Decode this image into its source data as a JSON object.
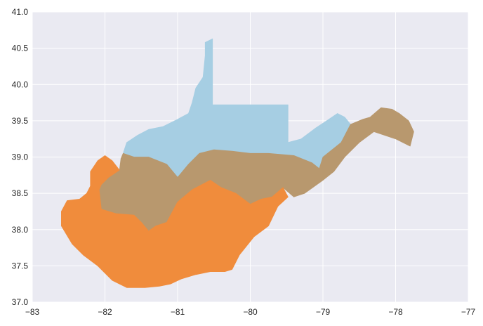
{
  "chart_data": {
    "type": "map",
    "title": "",
    "xlabel": "",
    "ylabel": "",
    "xlim": [
      -83,
      -77
    ],
    "ylim": [
      37.0,
      41.0
    ],
    "grid": true,
    "x_ticks": [
      -83,
      -82,
      -81,
      -80,
      -79,
      -78,
      -77
    ],
    "x_tick_labels": [
      "−83",
      "−82",
      "−81",
      "−80",
      "−79",
      "−78",
      "−77"
    ],
    "y_ticks": [
      37.0,
      37.5,
      38.0,
      38.5,
      39.0,
      39.5,
      40.0,
      40.5,
      41.0
    ],
    "y_tick_labels": [
      "37.0",
      "37.5",
      "38.0",
      "38.5",
      "39.0",
      "39.5",
      "40.0",
      "40.5",
      "41.0"
    ],
    "colors": {
      "plot_background": "#eaeaf2",
      "grid": "#ffffff",
      "north": "#a6cee3",
      "central": "#b8986e",
      "south": "#f08c3c"
    },
    "regions": [
      {
        "id": "north",
        "color": "#a6cee3",
        "outline": [
          [
            -80.52,
            40.63
          ],
          [
            -80.52,
            39.72
          ],
          [
            -79.48,
            39.72
          ],
          [
            -79.48,
            39.2
          ],
          [
            -79.3,
            39.25
          ],
          [
            -79.1,
            39.4
          ],
          [
            -78.95,
            39.5
          ],
          [
            -78.8,
            39.6
          ],
          [
            -78.7,
            39.55
          ],
          [
            -78.62,
            39.45
          ],
          [
            -78.75,
            39.2
          ],
          [
            -79.0,
            39.0
          ],
          [
            -79.05,
            38.84
          ],
          [
            -79.15,
            38.92
          ],
          [
            -79.4,
            39.02
          ],
          [
            -79.75,
            39.05
          ],
          [
            -80.0,
            39.05
          ],
          [
            -80.25,
            39.08
          ],
          [
            -80.5,
            39.1
          ],
          [
            -80.7,
            39.05
          ],
          [
            -80.85,
            38.9
          ],
          [
            -81.0,
            38.72
          ],
          [
            -81.15,
            38.9
          ],
          [
            -81.4,
            39.0
          ],
          [
            -81.6,
            39.0
          ],
          [
            -81.75,
            39.05
          ],
          [
            -81.7,
            39.2
          ],
          [
            -81.55,
            39.3
          ],
          [
            -81.4,
            39.38
          ],
          [
            -81.2,
            39.42
          ],
          [
            -81.0,
            39.52
          ],
          [
            -80.85,
            39.6
          ],
          [
            -80.8,
            39.75
          ],
          [
            -80.75,
            39.95
          ],
          [
            -80.65,
            40.1
          ],
          [
            -80.62,
            40.4
          ],
          [
            -80.62,
            40.58
          ]
        ]
      },
      {
        "id": "central",
        "color": "#b8986e",
        "outline": [
          [
            -81.75,
            39.05
          ],
          [
            -81.6,
            39.0
          ],
          [
            -81.4,
            39.0
          ],
          [
            -81.15,
            38.9
          ],
          [
            -81.0,
            38.72
          ],
          [
            -80.85,
            38.9
          ],
          [
            -80.7,
            39.05
          ],
          [
            -80.5,
            39.1
          ],
          [
            -80.25,
            39.08
          ],
          [
            -80.0,
            39.05
          ],
          [
            -79.75,
            39.05
          ],
          [
            -79.4,
            39.02
          ],
          [
            -79.15,
            38.92
          ],
          [
            -79.05,
            38.84
          ],
          [
            -79.0,
            39.0
          ],
          [
            -78.75,
            39.2
          ],
          [
            -78.62,
            39.45
          ],
          [
            -78.45,
            39.52
          ],
          [
            -78.35,
            39.55
          ],
          [
            -78.2,
            39.68
          ],
          [
            -78.05,
            39.66
          ],
          [
            -77.95,
            39.6
          ],
          [
            -77.82,
            39.5
          ],
          [
            -77.75,
            39.35
          ],
          [
            -77.8,
            39.15
          ],
          [
            -78.0,
            39.25
          ],
          [
            -78.3,
            39.35
          ],
          [
            -78.5,
            39.2
          ],
          [
            -78.7,
            39.0
          ],
          [
            -78.85,
            38.8
          ],
          [
            -79.0,
            38.68
          ],
          [
            -79.25,
            38.5
          ],
          [
            -79.4,
            38.45
          ],
          [
            -79.55,
            38.58
          ],
          [
            -79.7,
            38.45
          ],
          [
            -79.85,
            38.42
          ],
          [
            -80.0,
            38.35
          ],
          [
            -80.2,
            38.5
          ],
          [
            -80.4,
            38.58
          ],
          [
            -80.55,
            38.68
          ],
          [
            -80.8,
            38.55
          ],
          [
            -81.0,
            38.38
          ],
          [
            -81.15,
            38.1
          ],
          [
            -81.3,
            38.05
          ],
          [
            -81.4,
            37.98
          ],
          [
            -81.5,
            38.1
          ],
          [
            -81.6,
            38.2
          ],
          [
            -81.85,
            38.22
          ],
          [
            -82.05,
            38.28
          ],
          [
            -82.08,
            38.55
          ],
          [
            -82.05,
            38.62
          ],
          [
            -81.95,
            38.72
          ],
          [
            -81.8,
            38.82
          ],
          [
            -81.78,
            38.98
          ]
        ]
      },
      {
        "id": "south",
        "color": "#f08c3c",
        "outline": [
          [
            -82.2,
            38.6
          ],
          [
            -82.2,
            38.8
          ],
          [
            -82.1,
            38.95
          ],
          [
            -82.0,
            39.02
          ],
          [
            -81.9,
            38.95
          ],
          [
            -81.8,
            38.82
          ],
          [
            -81.95,
            38.72
          ],
          [
            -82.05,
            38.62
          ],
          [
            -82.08,
            38.55
          ],
          [
            -82.05,
            38.28
          ],
          [
            -81.85,
            38.22
          ],
          [
            -81.6,
            38.2
          ],
          [
            -81.5,
            38.1
          ],
          [
            -81.4,
            37.98
          ],
          [
            -81.3,
            38.05
          ],
          [
            -81.15,
            38.1
          ],
          [
            -81.0,
            38.38
          ],
          [
            -80.8,
            38.55
          ],
          [
            -80.55,
            38.68
          ],
          [
            -80.4,
            38.58
          ],
          [
            -80.2,
            38.5
          ],
          [
            -80.0,
            38.35
          ],
          [
            -79.85,
            38.42
          ],
          [
            -79.7,
            38.45
          ],
          [
            -79.55,
            38.58
          ],
          [
            -79.48,
            38.45
          ],
          [
            -79.62,
            38.32
          ],
          [
            -79.75,
            38.05
          ],
          [
            -79.95,
            37.9
          ],
          [
            -80.15,
            37.65
          ],
          [
            -80.25,
            37.45
          ],
          [
            -80.35,
            37.42
          ],
          [
            -80.55,
            37.42
          ],
          [
            -80.75,
            37.38
          ],
          [
            -80.95,
            37.32
          ],
          [
            -81.1,
            37.25
          ],
          [
            -81.25,
            37.22
          ],
          [
            -81.45,
            37.2
          ],
          [
            -81.7,
            37.2
          ],
          [
            -81.9,
            37.3
          ],
          [
            -82.1,
            37.5
          ],
          [
            -82.3,
            37.65
          ],
          [
            -82.45,
            37.8
          ],
          [
            -82.6,
            38.05
          ],
          [
            -82.6,
            38.25
          ],
          [
            -82.52,
            38.4
          ],
          [
            -82.35,
            38.42
          ],
          [
            -82.25,
            38.5
          ]
        ]
      }
    ]
  }
}
